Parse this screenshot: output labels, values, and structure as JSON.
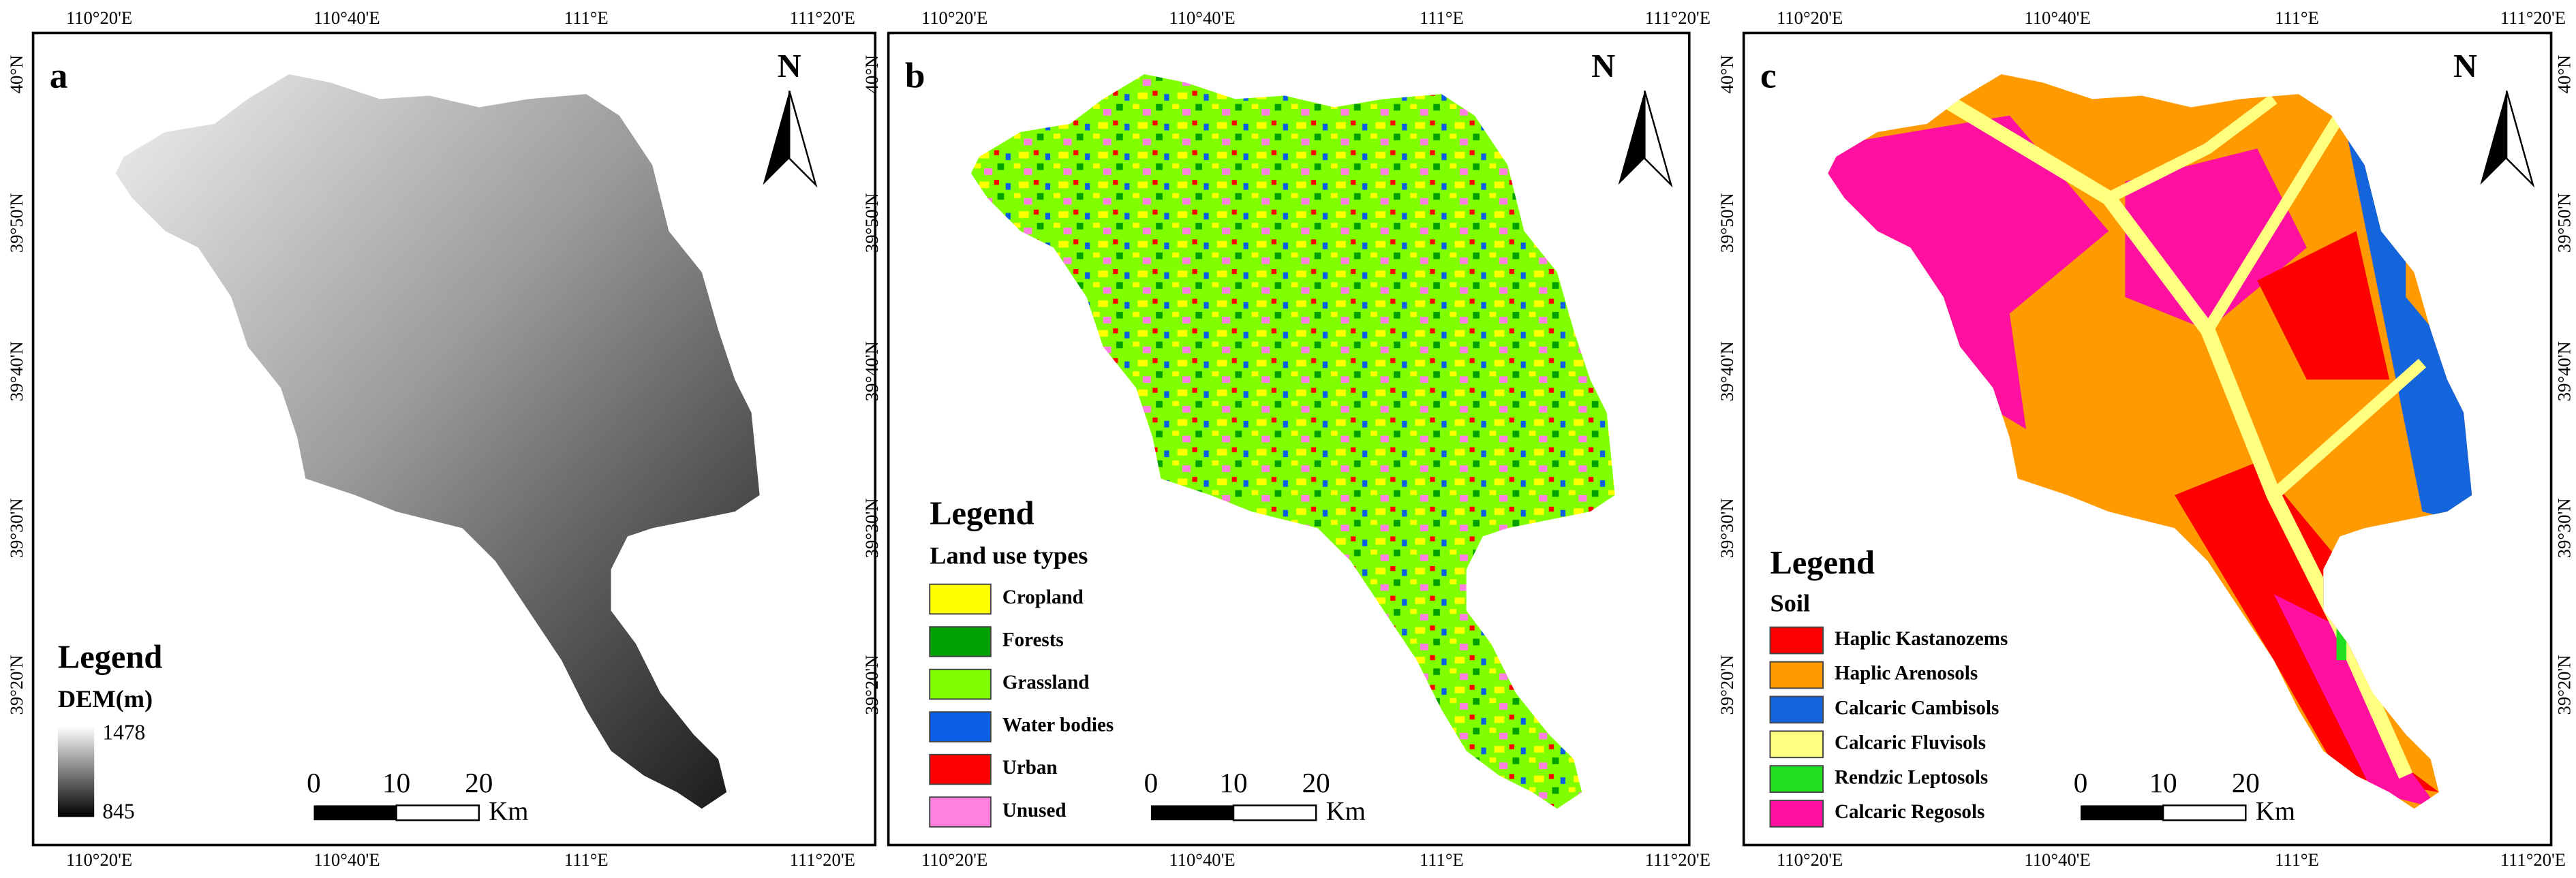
{
  "panels": [
    {
      "label": "a",
      "legend_title": "Legend",
      "legend_subtitle": "DEM(m)",
      "dem_max": 1478,
      "dem_min": 845
    },
    {
      "label": "b",
      "legend_title": "Legend",
      "legend_subtitle": "Land use types",
      "legend_items": [
        {
          "name": "Cropland",
          "color": "#ffff00"
        },
        {
          "name": "Forests",
          "color": "#00a000"
        },
        {
          "name": "Grassland",
          "color": "#80ff00"
        },
        {
          "name": "Water bodies",
          "color": "#0a5fe6"
        },
        {
          "name": "Urban",
          "color": "#ff0000"
        },
        {
          "name": "Unused",
          "color": "#ff80e0"
        }
      ]
    },
    {
      "label": "c",
      "legend_title": "Legend",
      "legend_subtitle": "Soil",
      "legend_items": [
        {
          "name": "Haplic Kastanozems",
          "color": "#ff0000"
        },
        {
          "name": "Haplic Arenosols",
          "color": "#ff9a00"
        },
        {
          "name": "Calcaric Cambisols",
          "color": "#1464dc"
        },
        {
          "name": "Calcaric Fluvisols",
          "color": "#ffff80"
        },
        {
          "name": "Rendzic Leptosols",
          "color": "#20e020"
        },
        {
          "name": "Calcaric Regosols",
          "color": "#ff10a0"
        }
      ]
    }
  ],
  "lon_ticks": [
    "110°20'E",
    "110°40'E",
    "111°E",
    "111°20'E"
  ],
  "lat_ticks": [
    "40°N",
    "39°50'N",
    "39°40'N",
    "39°30'N",
    "39°20'N"
  ],
  "north": "N",
  "scale_labels": [
    "0",
    "10",
    "20"
  ],
  "scale_unit": "Km"
}
